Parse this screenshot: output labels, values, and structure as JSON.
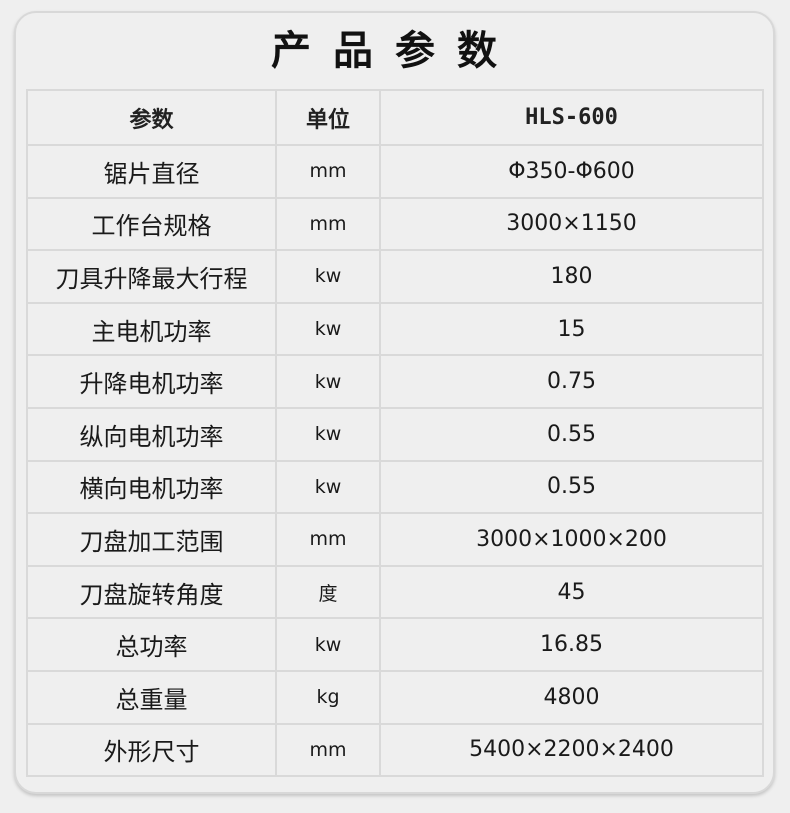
{
  "title": "产品参数",
  "headers": {
    "param": "参数",
    "unit": "单位",
    "model": "HLS-600"
  },
  "rows": [
    {
      "param": "锯片直径",
      "unit": "mm",
      "value": "Φ350-Φ600"
    },
    {
      "param": "工作台规格",
      "unit": "mm",
      "value": "3000×1150"
    },
    {
      "param": "刀具升降最大行程",
      "unit": "kw",
      "value": "180"
    },
    {
      "param": "主电机功率",
      "unit": "kw",
      "value": "15"
    },
    {
      "param": "升降电机功率",
      "unit": "kw",
      "value": "0.75"
    },
    {
      "param": "纵向电机功率",
      "unit": "kw",
      "value": "0.55"
    },
    {
      "param": "横向电机功率",
      "unit": "kw",
      "value": "0.55"
    },
    {
      "param": "刀盘加工范围",
      "unit": "mm",
      "value": "3000×1000×200"
    },
    {
      "param": "刀盘旋转角度",
      "unit": "度",
      "value": "45"
    },
    {
      "param": "总功率",
      "unit": "kw",
      "value": "16.85"
    },
    {
      "param": "总重量",
      "unit": "kg",
      "value": "4800"
    },
    {
      "param": "外形尺寸",
      "unit": "mm",
      "value": "5400×2200×2400"
    }
  ]
}
